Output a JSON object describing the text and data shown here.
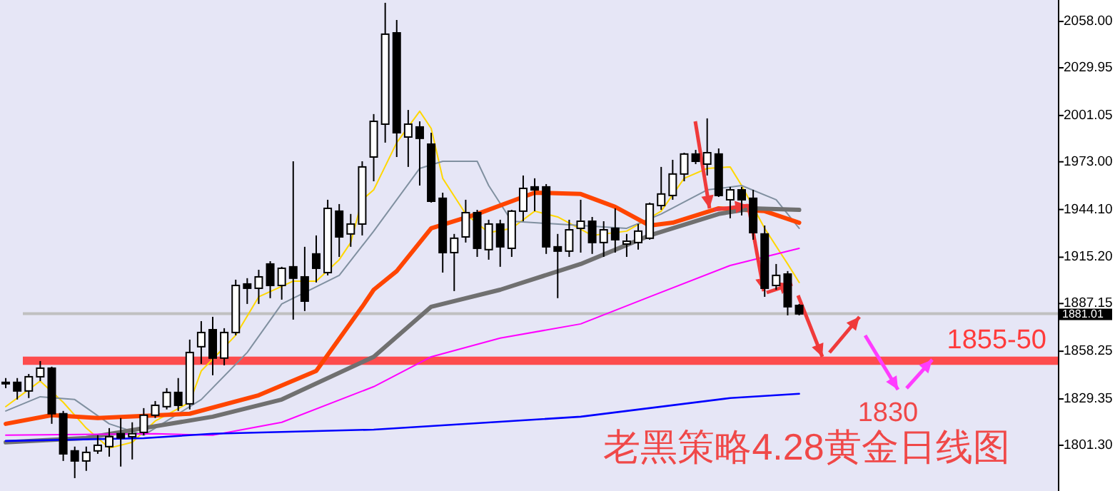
{
  "chart_data": {
    "type": "candlestick",
    "title": "老黑策略4.28黄金日线图",
    "annotations": [
      "1830"
    ],
    "categories": [
      null,
      null,
      null,
      null,
      null,
      null,
      null,
      null,
      null,
      null,
      null,
      null,
      null,
      null,
      null,
      null,
      null,
      null,
      null,
      null,
      null,
      null,
      null,
      null,
      null,
      null,
      null,
      null,
      null,
      null,
      null,
      null,
      null,
      null,
      null,
      null,
      null,
      null,
      null,
      null,
      null,
      null,
      null,
      null,
      null,
      null,
      null,
      null,
      null,
      null,
      null,
      null,
      null,
      null,
      null,
      null,
      null,
      null,
      null,
      null,
      null,
      null,
      null,
      null,
      null,
      null,
      null,
      null,
      null,
      null,
      null,
      null,
      null,
      null,
      null,
      null,
      null,
      null,
      null,
      null,
      null,
      null,
      null,
      null,
      null,
      null,
      null,
      null,
      null,
      null,
      null,
      null
    ],
    "ohlc": [
      [
        1839.4,
        1842.0,
        1835.9,
        1839.4
      ],
      [
        1839.4,
        1842.0,
        1829.0,
        1834.2
      ],
      [
        1834.2,
        1844.5,
        1829.9,
        1842.8
      ],
      [
        1842.8,
        1852.3,
        1840.2,
        1848.0
      ],
      [
        1848.0,
        1848.9,
        1814.3,
        1820.4
      ],
      [
        1820.4,
        1822.1,
        1791.8,
        1796.1
      ],
      [
        1797.9,
        1800.5,
        1781.4,
        1791.8
      ],
      [
        1791.8,
        1800.5,
        1785.8,
        1797.0
      ],
      [
        1797.9,
        1807.4,
        1796.1,
        1801.3
      ],
      [
        1800.5,
        1811.7,
        1794.4,
        1806.5
      ],
      [
        1808.3,
        1817.8,
        1788.4,
        1805.7
      ],
      [
        1806.5,
        1815.2,
        1792.7,
        1808.3
      ],
      [
        1809.1,
        1823.8,
        1807.4,
        1819.5
      ],
      [
        1819.5,
        1828.1,
        1817.8,
        1825.5
      ],
      [
        1824.7,
        1835.9,
        1823.0,
        1833.3
      ],
      [
        1833.3,
        1842.0,
        1822.1,
        1825.5
      ],
      [
        1826.4,
        1865.3,
        1823.0,
        1857.5
      ],
      [
        1861.0,
        1876.5,
        1850.6,
        1869.6
      ],
      [
        1871.3,
        1879.1,
        1843.7,
        1854.1
      ],
      [
        1854.1,
        1872.2,
        1849.7,
        1869.6
      ],
      [
        1869.6,
        1901.6,
        1867.9,
        1898.1
      ],
      [
        1899.0,
        1902.5,
        1886.9,
        1896.4
      ],
      [
        1896.4,
        1907.6,
        1886.9,
        1903.3
      ],
      [
        1911.1,
        1912.8,
        1890.4,
        1898.1
      ],
      [
        1898.1,
        1909.4,
        1889.5,
        1908.5
      ],
      [
        1909.4,
        1973.3,
        1877.4,
        1902.5
      ],
      [
        1903.3,
        1921.5,
        1882.6,
        1888.6
      ],
      [
        1917.2,
        1928.4,
        1899.9,
        1908.5
      ],
      [
        1905.9,
        1950.0,
        1904.2,
        1944.8
      ],
      [
        1943.1,
        1947.4,
        1915.4,
        1927.5
      ],
      [
        1929.3,
        1941.4,
        1921.5,
        1935.3
      ],
      [
        1935.3,
        1973.3,
        1928.4,
        1969.9
      ],
      [
        1975.9,
        2001.9,
        1961.2,
        1997.5
      ],
      [
        1995.8,
        2069.3,
        1984.6,
        2050.3
      ],
      [
        2051.1,
        2058.9,
        1975.9,
        1990.6
      ],
      [
        1988.0,
        2004.4,
        1969.9,
        1995.8
      ],
      [
        1994.1,
        1997.5,
        1958.6,
        1987.2
      ],
      [
        1983.7,
        1990.6,
        1948.3,
        1949.1
      ],
      [
        1950.9,
        1954.3,
        1905.9,
        1918.0
      ],
      [
        1918.0,
        1929.3,
        1894.7,
        1926.7
      ],
      [
        1927.5,
        1950.0,
        1924.1,
        1942.2
      ],
      [
        1942.2,
        1943.9,
        1915.4,
        1920.6
      ],
      [
        1919.8,
        1937.9,
        1913.7,
        1935.3
      ],
      [
        1935.3,
        1937.9,
        1909.4,
        1921.5
      ],
      [
        1920.6,
        1943.9,
        1915.4,
        1943.1
      ],
      [
        1943.1,
        1964.7,
        1937.0,
        1956.9
      ],
      [
        1957.8,
        1963.0,
        1943.1,
        1956.0
      ],
      [
        1957.8,
        1959.5,
        1917.2,
        1921.5
      ],
      [
        1921.5,
        1929.3,
        1890.4,
        1918.9
      ],
      [
        1918.9,
        1937.9,
        1915.4,
        1931.8
      ],
      [
        1932.7,
        1950.0,
        1918.0,
        1937.0
      ],
      [
        1937.0,
        1939.6,
        1917.2,
        1924.1
      ],
      [
        1924.1,
        1937.0,
        1915.4,
        1931.8
      ],
      [
        1932.7,
        1944.8,
        1918.0,
        1925.8
      ],
      [
        1923.2,
        1929.3,
        1915.4,
        1924.9
      ],
      [
        1924.1,
        1935.3,
        1919.8,
        1931.0
      ],
      [
        1926.7,
        1948.3,
        1925.8,
        1947.4
      ],
      [
        1946.5,
        1969.9,
        1943.9,
        1953.5
      ],
      [
        1952.6,
        1974.2,
        1950.0,
        1965.6
      ],
      [
        1965.6,
        1978.5,
        1961.2,
        1977.7
      ],
      [
        1977.7,
        1980.2,
        1971.6,
        1973.3
      ],
      [
        1971.6,
        1999.3,
        1964.7,
        1978.5
      ],
      [
        1977.7,
        1981.1,
        1951.7,
        1952.6
      ],
      [
        1950.0,
        1957.8,
        1938.8,
        1956.0
      ],
      [
        1956.0,
        1957.8,
        1940.5,
        1950.0
      ],
      [
        1950.9,
        1956.0,
        1925.8,
        1930.1
      ],
      [
        1929.3,
        1934.4,
        1891.2,
        1896.4
      ],
      [
        1898.1,
        1911.1,
        1895.5,
        1904.2
      ],
      [
        1905.0,
        1906.8,
        1880.0,
        1885.2
      ],
      [
        1886.0,
        1886.9,
        1880.0,
        1880.9
      ],
      null,
      null,
      null,
      null,
      null,
      null,
      null,
      null,
      null,
      null,
      null,
      null,
      null,
      null,
      null,
      null,
      null,
      null,
      null,
      null,
      null,
      null
    ],
    "series": [
      {
        "type": "line",
        "color": "#ffd700",
        "values": [
          1824.7,
          null,
          null,
          1840.2,
          null,
          1827.3,
          null,
          1811.7,
          null,
          1799.6,
          null,
          1803.1,
          null,
          1816.0,
          null,
          null,
          1827.3,
          1846.3,
          null,
          null,
          1867.9,
          null,
          1891.2,
          null,
          null,
          1900.7,
          null,
          1900.7,
          null,
          1913.7,
          1924.1,
          1950.0,
          1956.0,
          null,
          1984.6,
          null,
          2003.6,
          1993.2,
          1963.0,
          null,
          1941.4,
          null,
          1930.1,
          null,
          1932.7,
          null,
          1943.1,
          null,
          1939.6,
          null,
          null,
          1928.4,
          null,
          null,
          1931.0,
          null,
          null,
          1943.1,
          null,
          1963.0,
          null,
          1969.0,
          null,
          1969.9,
          1958.6,
          null,
          1932.7,
          null,
          1911.1,
          1899.9,
          null,
          null,
          null,
          null,
          null,
          null,
          null,
          null,
          null,
          null,
          null,
          null,
          null,
          null,
          null,
          null,
          null,
          null,
          null,
          null,
          null,
          null
        ]
      },
      {
        "type": "line",
        "color": "#8090a0",
        "values": [
          1822.1,
          null,
          null,
          1830.7,
          null,
          null,
          1829.0,
          null,
          null,
          1814.3,
          null,
          null,
          1807.4,
          null,
          null,
          null,
          null,
          1829.0,
          null,
          null,
          null,
          1857.5,
          null,
          null,
          1886.9,
          null,
          null,
          null,
          null,
          1904.2,
          null,
          null,
          1931.0,
          null,
          null,
          null,
          1969.0,
          null,
          1973.3,
          null,
          null,
          1973.3,
          1958.6,
          null,
          1937.0,
          null,
          null,
          null,
          null,
          null,
          1934.4,
          null,
          null,
          null,
          1932.7,
          null,
          null,
          1941.4,
          null,
          null,
          null,
          1956.0,
          null,
          null,
          1958.6,
          null,
          null,
          1950.0,
          null,
          1932.7,
          null,
          null,
          null,
          null,
          null,
          null,
          null,
          null,
          null,
          null,
          null,
          null,
          null,
          null,
          null,
          null,
          null,
          null,
          null,
          null,
          null,
          null
        ]
      },
      {
        "type": "line",
        "color": "#ff4500",
        "values": [
          1814.3,
          null,
          null,
          null,
          1819.5,
          null,
          null,
          null,
          1817.8,
          null,
          null,
          null,
          null,
          null,
          null,
          null,
          1820.4,
          null,
          null,
          null,
          null,
          null,
          1831.6,
          null,
          null,
          null,
          null,
          1846.3,
          null,
          null,
          null,
          1885.2,
          1895.5,
          null,
          1906.8,
          null,
          null,
          1932.7,
          null,
          null,
          null,
          1941.4,
          null,
          null,
          null,
          null,
          1954.3,
          null,
          null,
          null,
          1953.5,
          null,
          null,
          1945.7,
          null,
          null,
          1934.4,
          null,
          1936.1,
          null,
          null,
          null,
          1944.8,
          null,
          null,
          null,
          1943.1,
          null,
          null,
          1936.1,
          null,
          null,
          null,
          null,
          null,
          null,
          null,
          null,
          null,
          null,
          null,
          null,
          null,
          null,
          null,
          null,
          null,
          null,
          null,
          null,
          null,
          null
        ]
      },
      {
        "type": "line",
        "color": "#707070",
        "values": [
          1803.1,
          null,
          null,
          null,
          null,
          null,
          null,
          1805.7,
          null,
          null,
          null,
          null,
          1811.7,
          null,
          null,
          null,
          null,
          null,
          1818.6,
          null,
          null,
          null,
          null,
          null,
          1829.0,
          null,
          null,
          null,
          null,
          null,
          null,
          null,
          1854.9,
          null,
          null,
          null,
          null,
          1885.2,
          null,
          null,
          null,
          null,
          null,
          1895.5,
          null,
          null,
          null,
          null,
          null,
          null,
          1911.1,
          null,
          null,
          null,
          null,
          null,
          1928.4,
          null,
          null,
          null,
          null,
          null,
          1941.4,
          null,
          null,
          1944.8,
          null,
          null,
          null,
          1943.9,
          null,
          null,
          null,
          null,
          null,
          null,
          null,
          null,
          null,
          null,
          null,
          null,
          null,
          null,
          null,
          null,
          null,
          null,
          null,
          null,
          null,
          null
        ]
      },
      {
        "type": "line",
        "color": "#ff00ff",
        "values": [
          1807.4,
          null,
          null,
          null,
          null,
          null,
          null,
          null,
          null,
          null,
          null,
          null,
          null,
          1808.3,
          null,
          null,
          null,
          null,
          1807.4,
          null,
          null,
          null,
          null,
          null,
          1815.2,
          null,
          null,
          null,
          null,
          null,
          null,
          null,
          1836.8,
          null,
          null,
          null,
          null,
          1854.9,
          null,
          null,
          null,
          null,
          null,
          1866.2,
          null,
          null,
          null,
          null,
          null,
          null,
          1874.8,
          null,
          null,
          null,
          null,
          null,
          1891.2,
          null,
          null,
          null,
          null,
          null,
          null,
          1910.2,
          null,
          null,
          null,
          null,
          null,
          1920.6,
          null,
          null,
          null,
          null,
          null,
          null,
          null,
          null,
          null,
          null,
          null,
          null,
          null,
          null,
          null,
          null,
          null,
          null,
          null,
          null,
          null,
          null
        ]
      },
      {
        "type": "line",
        "color": "#0000ff",
        "values": [
          1803.9,
          null,
          null,
          null,
          null,
          null,
          null,
          null,
          null,
          null,
          null,
          null,
          1805.6,
          null,
          null,
          null,
          null,
          null,
          1808.3,
          null,
          null,
          null,
          null,
          null,
          null,
          null,
          null,
          null,
          null,
          null,
          null,
          null,
          1810.8,
          null,
          null,
          null,
          null,
          null,
          null,
          null,
          null,
          null,
          null,
          null,
          null,
          null,
          null,
          null,
          null,
          null,
          1818.6,
          null,
          null,
          null,
          null,
          null,
          null,
          null,
          null,
          null,
          null,
          null,
          null,
          1829.9,
          null,
          null,
          null,
          null,
          null,
          1832.5,
          null,
          null,
          null,
          null,
          null,
          null,
          null,
          null,
          null,
          null,
          null,
          null,
          null,
          null,
          null,
          null,
          null,
          null,
          null,
          null,
          null,
          null
        ]
      }
    ],
    "bands": [
      {
        "axis": "y",
        "from": 1850,
        "to": 1855,
        "label": "1855-50",
        "color": "#ff3b3b"
      }
    ],
    "ref_lines": [
      {
        "axis": "y",
        "value": 1881.01,
        "label": "1881.01",
        "color": "#c0c0c0"
      }
    ],
    "ylim": [
      1773.6,
      2071.0
    ],
    "yticks": [
      {
        "value": 2058,
        "label": "2058.00"
      },
      {
        "value": 2029.95,
        "label": "2029.95"
      },
      {
        "value": 2001.05,
        "label": "2001.05"
      },
      {
        "value": 1973,
        "label": "1973.00"
      },
      {
        "value": 1944.1,
        "label": "1944.10"
      },
      {
        "value": 1915.2,
        "label": "1915.20"
      },
      {
        "value": 1887.15,
        "label": "1887.15"
      },
      {
        "value": 1858.25,
        "label": "1858.25"
      },
      {
        "value": 1829.35,
        "label": "1829.35"
      },
      {
        "value": 1801.3,
        "label": "1801.30"
      }
    ],
    "tick_labels": "y"
  }
}
